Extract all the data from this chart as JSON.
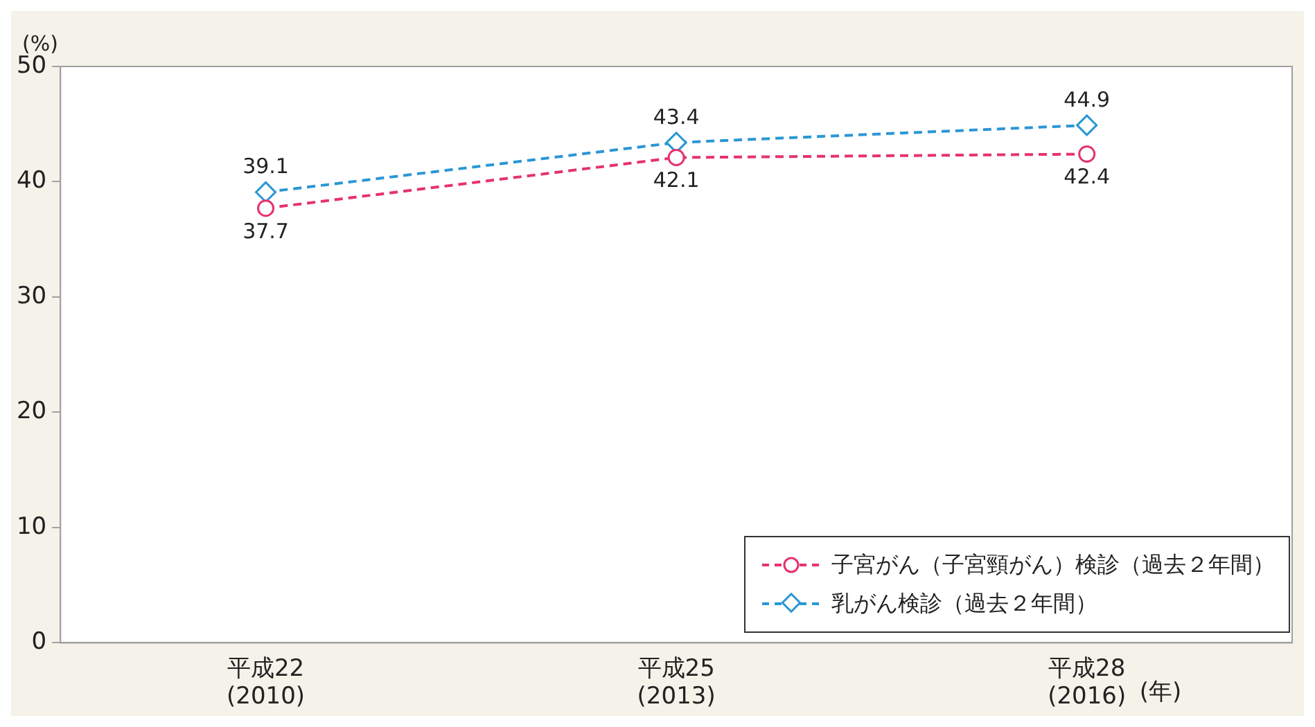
{
  "chart_data": {
    "type": "line",
    "ylabel": "(%)",
    "xlabel": "(年)",
    "categories": [
      "平成22\n(2010)",
      "平成25\n(2013)",
      "平成28\n(2016)"
    ],
    "series": [
      {
        "name": "子宮がん（子宮頸がん）検診（過去２年間）",
        "color": "#e5326f",
        "marker": "circle",
        "values": [
          37.7,
          42.1,
          42.4
        ]
      },
      {
        "name": "乳がん検診（過去２年間）",
        "color": "#2a97d4",
        "marker": "diamond",
        "values": [
          39.1,
          43.4,
          44.9
        ]
      }
    ],
    "ylim": [
      0,
      50
    ],
    "yticks": [
      0,
      10,
      20,
      30,
      40,
      50
    ],
    "line_style": "dashed",
    "data_labels": true,
    "legend": "bottom right",
    "grid": false
  }
}
